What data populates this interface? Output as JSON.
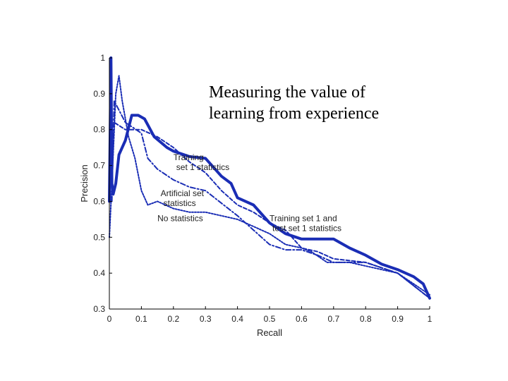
{
  "chart_data": {
    "type": "line",
    "title_lines": [
      "Measuring the value of",
      "learning from experience"
    ],
    "xlabel": "Recall",
    "ylabel": "Precision",
    "xlim": [
      0,
      1
    ],
    "ylim": [
      0.3,
      1
    ],
    "xticks": [
      "0",
      "0.1",
      "0.2",
      "0.3",
      "0.4",
      "0.5",
      "0.6",
      "0.7",
      "0.8",
      "0.9",
      "1"
    ],
    "yticks": [
      "0.3",
      "0.4",
      "0.5",
      "0.6",
      "0.7",
      "0.8",
      "0.9",
      "1"
    ],
    "series_color": "#1a2db5",
    "series": [
      {
        "style": "solid-thick",
        "x": [
          0,
          0.005,
          0.008,
          0.012,
          0.02,
          0.03,
          0.05,
          0.07,
          0.09,
          0.11,
          0.14,
          0.18,
          0.2,
          0.25,
          0.3,
          0.35,
          0.38,
          0.4,
          0.45,
          0.5,
          0.55,
          0.6,
          0.65,
          0.7,
          0.75,
          0.8,
          0.85,
          0.9,
          0.95,
          0.98,
          1.0
        ],
        "y": [
          0.6,
          1.0,
          0.65,
          0.62,
          0.65,
          0.73,
          0.77,
          0.84,
          0.84,
          0.83,
          0.78,
          0.75,
          0.74,
          0.725,
          0.72,
          0.67,
          0.65,
          0.61,
          0.59,
          0.54,
          0.51,
          0.495,
          0.495,
          0.495,
          0.47,
          0.45,
          0.425,
          0.41,
          0.39,
          0.37,
          0.33
        ]
      },
      {
        "style": "dashdot",
        "x": [
          0.008,
          0.015,
          0.05,
          0.1,
          0.12,
          0.15,
          0.2,
          0.25,
          0.3,
          0.4,
          0.45,
          0.5,
          0.55,
          0.6,
          0.65,
          0.7,
          0.8,
          0.9,
          1.0
        ],
        "y": [
          0.6,
          0.88,
          0.82,
          0.79,
          0.72,
          0.69,
          0.66,
          0.64,
          0.63,
          0.56,
          0.52,
          0.48,
          0.465,
          0.465,
          0.45,
          0.43,
          0.43,
          0.4,
          0.33
        ]
      },
      {
        "style": "dashed",
        "x": [
          0.008,
          0.015,
          0.05,
          0.1,
          0.15,
          0.2,
          0.25,
          0.3,
          0.35,
          0.4,
          0.45,
          0.5,
          0.55,
          0.6,
          0.65,
          0.7,
          0.8,
          0.9,
          1.0
        ],
        "y": [
          0.65,
          0.82,
          0.8,
          0.8,
          0.78,
          0.75,
          0.71,
          0.68,
          0.63,
          0.59,
          0.57,
          0.54,
          0.52,
          0.47,
          0.46,
          0.44,
          0.43,
          0.4,
          0.33
        ]
      },
      {
        "style": "dotted",
        "x": [
          0.0,
          0.008,
          0.02,
          0.03,
          0.04,
          0.06,
          0.08,
          0.1,
          0.12,
          0.15,
          0.2,
          0.25,
          0.3,
          0.35,
          0.4,
          0.45,
          0.5,
          0.55,
          0.6,
          0.63,
          0.68,
          0.75,
          0.8,
          0.9,
          1.0
        ],
        "y": [
          0.5,
          0.65,
          0.9,
          0.95,
          0.88,
          0.78,
          0.72,
          0.63,
          0.59,
          0.6,
          0.58,
          0.57,
          0.57,
          0.56,
          0.55,
          0.53,
          0.51,
          0.48,
          0.47,
          0.46,
          0.43,
          0.43,
          0.42,
          0.4,
          0.34
        ]
      }
    ],
    "annotations": [
      {
        "lines": [
          "Training",
          "set 1 statistics"
        ],
        "x": 0.2,
        "y": 0.715
      },
      {
        "lines": [
          "Artificial set",
          "statistics"
        ],
        "x": 0.16,
        "y": 0.615
      },
      {
        "lines": [
          "No statistics"
        ],
        "x": 0.15,
        "y": 0.545
      },
      {
        "lines": [
          "Training set 1 and",
          "test set 1 statistics"
        ],
        "x": 0.5,
        "y": 0.545
      }
    ]
  }
}
